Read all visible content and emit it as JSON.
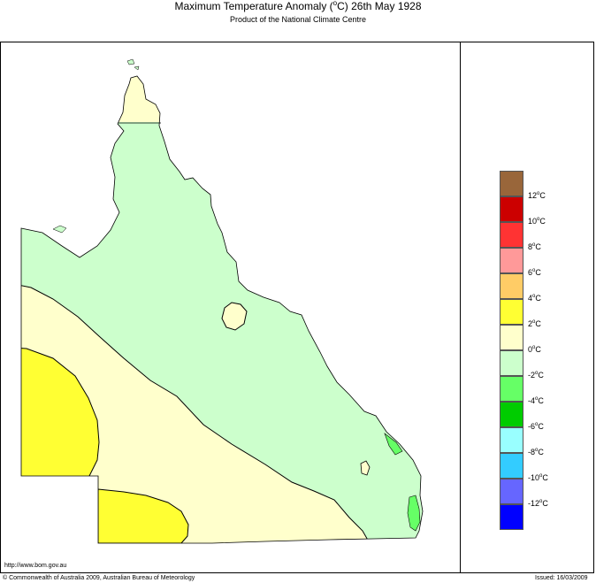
{
  "header": {
    "title_part1": "Maximum Temperature Anomaly (",
    "title_unit_sup": "o",
    "title_part2": "C)  26th May 1928",
    "subtitle": "Product of the National Climate Centre"
  },
  "legend": {
    "swatches": [
      {
        "color": "#99663a",
        "name": "legend-swatch-above-12"
      },
      {
        "color": "#cc0000",
        "name": "legend-swatch-10-12"
      },
      {
        "color": "#ff3333",
        "name": "legend-swatch-8-10"
      },
      {
        "color": "#ff9999",
        "name": "legend-swatch-6-8"
      },
      {
        "color": "#ffcc66",
        "name": "legend-swatch-4-6"
      },
      {
        "color": "#ffff33",
        "name": "legend-swatch-2-4"
      },
      {
        "color": "#ffffcc",
        "name": "legend-swatch-0-2"
      },
      {
        "color": "#ccffcc",
        "name": "legend-swatch-minus2-0"
      },
      {
        "color": "#66ff66",
        "name": "legend-swatch-minus4-minus2"
      },
      {
        "color": "#00cc00",
        "name": "legend-swatch-minus6-minus4"
      },
      {
        "color": "#99ffff",
        "name": "legend-swatch-minus8-minus6"
      },
      {
        "color": "#33ccff",
        "name": "legend-swatch-minus10-minus8"
      },
      {
        "color": "#6666ff",
        "name": "legend-swatch-minus12-minus10"
      },
      {
        "color": "#0000ff",
        "name": "legend-swatch-below-minus12"
      }
    ],
    "ticks": [
      "12",
      "10",
      "8",
      "6",
      "4",
      "2",
      "0",
      "-2",
      "-4",
      "-6",
      "-8",
      "-10",
      "-12"
    ],
    "unit_sup": "o",
    "unit": "C"
  },
  "map": {
    "region": "Queensland",
    "zone_colors": {
      "land_cool": "#ccffcc",
      "land_neutral": "#ffffcc",
      "land_warm": "#ffff33",
      "land_cold_patch": "#66ff66"
    }
  },
  "footer": {
    "url": "http://www.bom.gov.au",
    "copyright": "© Commonwealth of Australia 2009, Australian Bureau of Meteorology",
    "issued": "Issued: 16/03/2009"
  }
}
